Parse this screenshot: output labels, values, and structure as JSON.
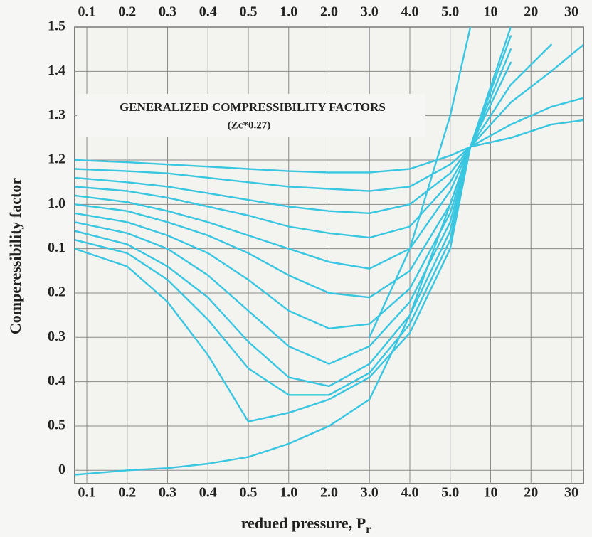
{
  "chart_data": {
    "type": "line",
    "title": "GENERALIZED COMPRESSIBILITY FACTORS",
    "subtitle": "(Zc*0.27)",
    "y_label": "Comperessibility factor",
    "x_label": "redued pressure, P",
    "x_label_subscript": "r",
    "color": "#38c6e0",
    "grid": true,
    "xlim": [
      -0.3,
      12.3
    ],
    "ylim": [
      -0.3,
      10
    ],
    "xticks": [
      {
        "value": 0,
        "label": "0.1"
      },
      {
        "value": 1,
        "label": "0.2"
      },
      {
        "value": 2,
        "label": "0.3"
      },
      {
        "value": 3,
        "label": "0.4"
      },
      {
        "value": 4,
        "label": "0.5"
      },
      {
        "value": 5,
        "label": "1.0"
      },
      {
        "value": 6,
        "label": "2.0"
      },
      {
        "value": 7,
        "label": "3.0"
      },
      {
        "value": 8,
        "label": "4.0"
      },
      {
        "value": 9,
        "label": "5.0"
      },
      {
        "value": 10,
        "label": "10"
      },
      {
        "value": 11,
        "label": "20"
      },
      {
        "value": 12,
        "label": "30"
      }
    ],
    "yticks": [
      {
        "value": 0,
        "label": "0"
      },
      {
        "value": 1,
        "label": "0.5"
      },
      {
        "value": 2,
        "label": "0.4"
      },
      {
        "value": 3,
        "label": "0.3"
      },
      {
        "value": 4,
        "label": "0.2"
      },
      {
        "value": 5,
        "label": "0.1"
      },
      {
        "value": 6,
        "label": "1.0"
      },
      {
        "value": 7,
        "label": "1.2"
      },
      {
        "value": 8,
        "label": "1.3"
      },
      {
        "value": 9,
        "label": "1.4"
      },
      {
        "value": 10,
        "label": "1.5"
      }
    ],
    "x": [
      -0.3,
      1,
      2,
      3,
      4,
      5,
      6,
      7,
      8,
      9,
      9.5,
      10.5,
      11.5,
      12.3
    ],
    "series": [
      {
        "values": [
          7.0,
          6.95,
          6.9,
          6.85,
          6.8,
          6.75,
          6.72,
          6.72,
          6.8,
          7.1,
          7.3,
          7.5,
          7.8,
          7.9
        ]
      },
      {
        "values": [
          6.8,
          6.75,
          6.7,
          6.6,
          6.5,
          6.4,
          6.35,
          6.3,
          6.4,
          6.9,
          7.3,
          7.8,
          8.2,
          8.4
        ]
      },
      {
        "values": [
          6.6,
          6.5,
          6.4,
          6.25,
          6.1,
          5.95,
          5.85,
          5.8,
          6.0,
          6.7,
          7.3,
          8.3,
          9.0,
          9.6
        ]
      },
      {
        "values": [
          6.4,
          6.3,
          6.15,
          5.95,
          5.75,
          5.5,
          5.35,
          5.25,
          5.5,
          6.5,
          7.3,
          8.7,
          9.6,
          null
        ]
      },
      {
        "values": [
          6.2,
          6.05,
          5.85,
          5.6,
          5.3,
          5.0,
          4.7,
          4.55,
          5.0,
          6.3,
          7.3,
          9.2,
          null,
          null
        ]
      },
      {
        "values": [
          6.0,
          5.85,
          5.6,
          5.3,
          4.9,
          4.4,
          4.0,
          3.9,
          4.5,
          6.0,
          7.3,
          9.8,
          null,
          null
        ]
      },
      {
        "values": [
          5.8,
          5.6,
          5.3,
          4.9,
          4.3,
          3.6,
          3.2,
          3.3,
          4.1,
          5.8,
          7.3,
          10.0,
          null,
          null
        ]
      },
      {
        "values": [
          5.6,
          5.35,
          5.0,
          4.4,
          3.6,
          2.8,
          2.4,
          2.8,
          3.8,
          5.6,
          7.3,
          null,
          null,
          null
        ]
      },
      {
        "values": [
          5.4,
          5.1,
          4.6,
          3.9,
          2.9,
          2.1,
          1.9,
          2.4,
          3.5,
          5.4,
          7.3,
          null,
          null,
          null
        ]
      },
      {
        "values": [
          5.2,
          4.9,
          4.3,
          3.4,
          2.3,
          1.7,
          1.7,
          2.2,
          3.3,
          5.2,
          7.3,
          null,
          null,
          null
        ]
      },
      {
        "values": [
          5.0,
          4.6,
          3.8,
          2.6,
          1.1,
          1.3,
          1.6,
          2.1,
          3.1,
          5.0,
          7.3,
          null,
          null,
          null
        ]
      },
      {
        "values": [
          -0.1,
          0.0,
          0.05,
          0.15,
          0.3,
          0.6,
          1.0,
          1.6,
          3.5,
          6.0,
          7.3,
          9.5,
          null,
          null
        ]
      },
      {
        "values": [
          null,
          null,
          null,
          null,
          null,
          null,
          null,
          3.0,
          5.0,
          8.0,
          10.0,
          null,
          null,
          null
        ]
      }
    ]
  }
}
